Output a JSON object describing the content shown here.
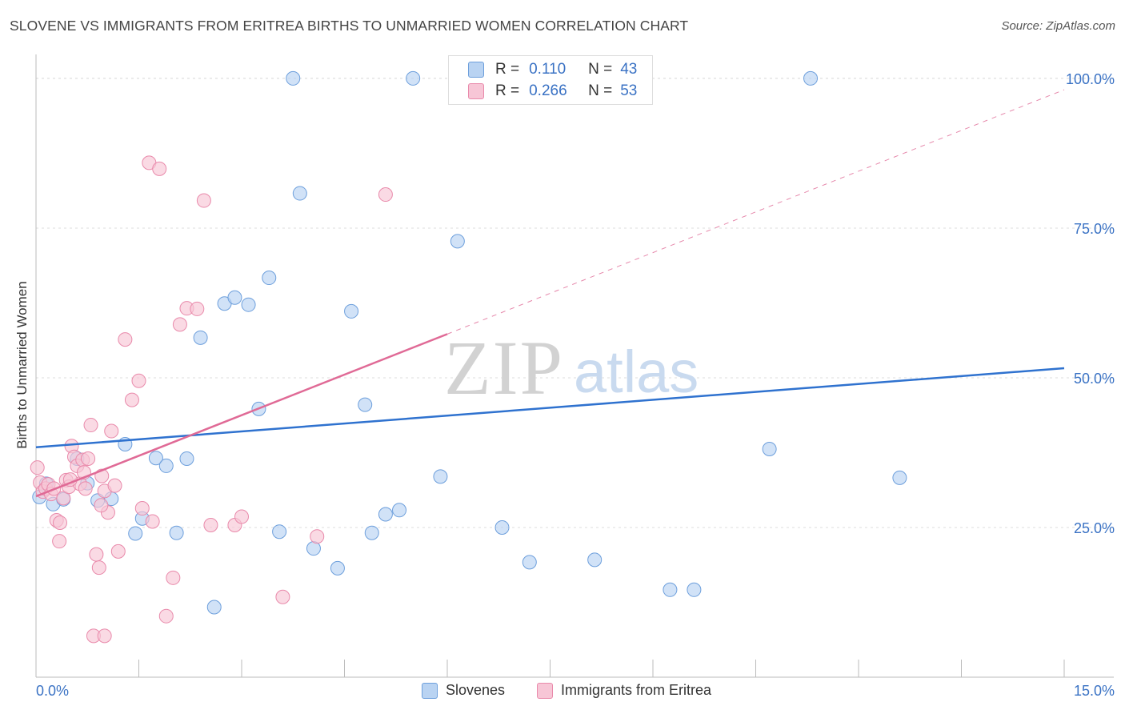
{
  "header": {
    "title": "SLOVENE VS IMMIGRANTS FROM ERITREA BIRTHS TO UNMARRIED WOMEN CORRELATION CHART",
    "source": "Source: ZipAtlas.com"
  },
  "watermark": {
    "zip": "ZIP",
    "atlas": "atlas"
  },
  "legend": {
    "r_label": "R =",
    "n_label": "N =",
    "rows": [
      {
        "r": "0.110",
        "n": "43"
      },
      {
        "r": "0.266",
        "n": "53"
      }
    ]
  },
  "colors": {
    "blue_fill": "#b9d3f2",
    "blue_stroke": "#6d9fdc",
    "blue_line": "#2f72cf",
    "pink_fill": "#f7c6d6",
    "pink_stroke": "#e98aab",
    "pink_line": "#e06a96",
    "axis_text": "#3a72c4"
  },
  "chart_data": {
    "type": "scatter",
    "title": "SLOVENE VS IMMIGRANTS FROM ERITREA BIRTHS TO UNMARRIED WOMEN CORRELATION CHART",
    "xlabel": "",
    "ylabel": "Births to Unmarried Women",
    "xlim": [
      0,
      15
    ],
    "ylim": [
      0,
      104
    ],
    "x_tick_labels": [
      "0.0%",
      "15.0%"
    ],
    "y_ticks": [
      25,
      50,
      75,
      100
    ],
    "y_tick_labels": [
      "25.0%",
      "50.0%",
      "75.0%",
      "100.0%"
    ],
    "grid": true,
    "legend_position": "top-center",
    "series": [
      {
        "name": "Slovenes",
        "color": "#6d9fdc",
        "r": 0.11,
        "n": 43,
        "trend": {
          "x": [
            0,
            15
          ],
          "y": [
            38.4,
            51.6
          ],
          "style": "solid"
        },
        "points": [
          [
            0.05,
            30.1
          ],
          [
            0.15,
            32.3
          ],
          [
            0.25,
            28.9
          ],
          [
            0.4,
            29.7
          ],
          [
            0.6,
            36.5
          ],
          [
            0.75,
            32.4
          ],
          [
            0.9,
            29.5
          ],
          [
            1.1,
            29.8
          ],
          [
            1.3,
            38.9
          ],
          [
            1.45,
            24.0
          ],
          [
            1.55,
            26.5
          ],
          [
            1.75,
            36.6
          ],
          [
            1.9,
            35.3
          ],
          [
            2.05,
            24.1
          ],
          [
            2.2,
            36.5
          ],
          [
            2.4,
            56.7
          ],
          [
            2.6,
            11.7
          ],
          [
            2.75,
            62.4
          ],
          [
            2.9,
            63.4
          ],
          [
            3.1,
            62.2
          ],
          [
            3.25,
            44.8
          ],
          [
            3.4,
            66.7
          ],
          [
            3.55,
            24.3
          ],
          [
            3.75,
            100.0
          ],
          [
            3.85,
            80.8
          ],
          [
            4.05,
            21.5
          ],
          [
            4.4,
            18.2
          ],
          [
            4.6,
            61.1
          ],
          [
            4.8,
            45.5
          ],
          [
            4.9,
            24.1
          ],
          [
            5.1,
            27.2
          ],
          [
            5.3,
            27.9
          ],
          [
            5.5,
            100.0
          ],
          [
            5.9,
            33.5
          ],
          [
            6.15,
            72.8
          ],
          [
            6.8,
            25.0
          ],
          [
            7.2,
            19.2
          ],
          [
            8.15,
            19.6
          ],
          [
            9.25,
            14.6
          ],
          [
            9.6,
            14.6
          ],
          [
            10.7,
            38.1
          ],
          [
            11.3,
            100.0
          ],
          [
            12.6,
            33.3
          ]
        ]
      },
      {
        "name": "Immigrants from Eritrea",
        "color": "#e98aab",
        "r": 0.266,
        "n": 53,
        "trend": {
          "x": [
            0,
            6.0
          ],
          "y": [
            30.2,
            57.3
          ],
          "dashed_to": [
            15,
            98.1
          ]
        },
        "points": [
          [
            0.02,
            35.0
          ],
          [
            0.06,
            32.5
          ],
          [
            0.1,
            31.0
          ],
          [
            0.14,
            31.5
          ],
          [
            0.18,
            32.2
          ],
          [
            0.22,
            30.6
          ],
          [
            0.26,
            31.5
          ],
          [
            0.3,
            26.2
          ],
          [
            0.34,
            22.7
          ],
          [
            0.4,
            29.9
          ],
          [
            0.44,
            32.9
          ],
          [
            0.48,
            31.8
          ],
          [
            0.52,
            38.6
          ],
          [
            0.56,
            36.8
          ],
          [
            0.6,
            35.3
          ],
          [
            0.64,
            32.3
          ],
          [
            0.68,
            36.3
          ],
          [
            0.72,
            31.5
          ],
          [
            0.76,
            36.5
          ],
          [
            0.8,
            42.1
          ],
          [
            0.84,
            6.9
          ],
          [
            0.88,
            20.5
          ],
          [
            0.92,
            18.3
          ],
          [
            0.96,
            33.6
          ],
          [
            1.0,
            31.1
          ],
          [
            1.05,
            27.5
          ],
          [
            1.1,
            41.1
          ],
          [
            1.2,
            21.0
          ],
          [
            1.3,
            56.4
          ],
          [
            1.4,
            46.3
          ],
          [
            1.5,
            49.5
          ],
          [
            1.55,
            28.2
          ],
          [
            1.65,
            85.9
          ],
          [
            1.7,
            26.0
          ],
          [
            1.8,
            84.9
          ],
          [
            1.9,
            10.2
          ],
          [
            2.0,
            16.6
          ],
          [
            2.1,
            58.9
          ],
          [
            2.2,
            61.6
          ],
          [
            2.35,
            61.5
          ],
          [
            2.45,
            79.6
          ],
          [
            2.55,
            25.4
          ],
          [
            2.9,
            25.4
          ],
          [
            3.0,
            26.8
          ],
          [
            3.6,
            13.4
          ],
          [
            4.1,
            23.5
          ],
          [
            5.1,
            80.6
          ],
          [
            0.35,
            25.8
          ],
          [
            0.7,
            34.2
          ],
          [
            0.95,
            28.7
          ],
          [
            1.15,
            32.0
          ],
          [
            0.5,
            33.0
          ],
          [
            1.0,
            6.9
          ]
        ]
      }
    ]
  }
}
